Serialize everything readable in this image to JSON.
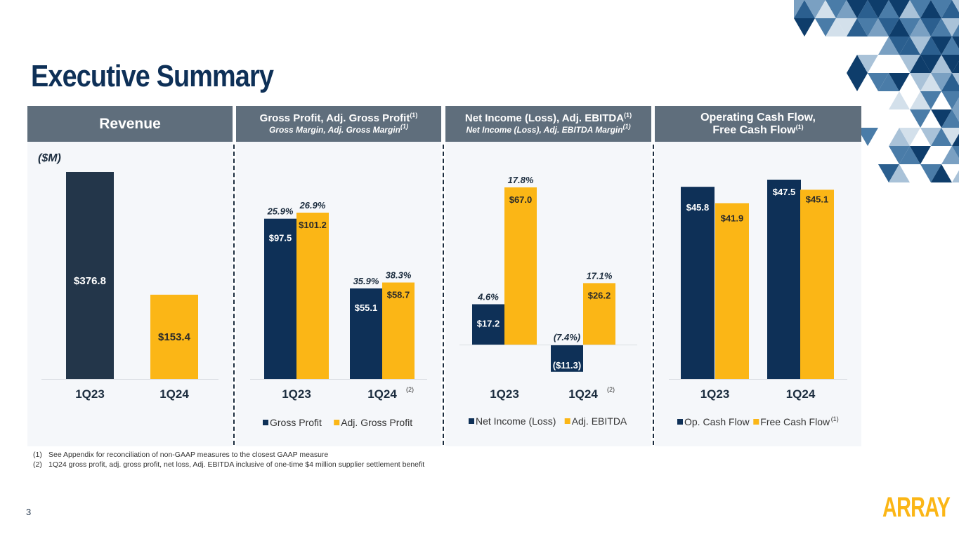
{
  "page": {
    "title": "Executive Summary",
    "page_number": "3",
    "logo_text": "ARRAY",
    "unit_label": "($M)",
    "colors": {
      "navy": "#0e3057",
      "dark": "#23364a",
      "gold": "#fbb616",
      "header": "#5f6e7c",
      "panel": "#f5f7fa"
    }
  },
  "panels": [
    {
      "title": "Revenue",
      "subtitle": "",
      "title_sup": ""
    },
    {
      "title": "Gross Profit, Adj. Gross Profit",
      "title_sup": "(1)",
      "subtitle": "Gross Margin, Adj. Gross Margin",
      "subtitle_sup": "(1)"
    },
    {
      "title": "Net Income (Loss), Adj. EBITDA",
      "title_sup": "(1)",
      "subtitle": "Net Income (Loss), Adj. EBITDA Margin",
      "subtitle_sup": "(1)"
    },
    {
      "title": "Operating Cash Flow,",
      "title_line2": "Free Cash Flow",
      "title_sup": "(1)",
      "subtitle": ""
    }
  ],
  "footnotes": [
    {
      "num": "(1)",
      "text": "See Appendix for reconciliation of non-GAAP measures to the closest GAAP measure"
    },
    {
      "num": "(2)",
      "text": "1Q24 gross profit, adj. gross profit, net loss, Adj. EBITDA inclusive of one-time $4 million supplier settlement benefit"
    }
  ],
  "chart_data": [
    {
      "type": "bar",
      "title": "Revenue",
      "ylabel": "($M)",
      "categories": [
        "1Q23",
        "1Q24"
      ],
      "category_notes": [
        "",
        ""
      ],
      "values": [
        376.8,
        153.4
      ],
      "value_labels": [
        "$376.8",
        "$153.4"
      ],
      "bar_colors": [
        "#23364a",
        "#fbb616"
      ],
      "ylim": [
        0,
        376.8
      ],
      "grid": false,
      "legend": null
    },
    {
      "type": "bar",
      "title": "Gross Profit, Adj. Gross Profit",
      "categories": [
        "1Q23",
        "1Q24"
      ],
      "category_notes": [
        "",
        "(2)"
      ],
      "series": [
        {
          "name": "Gross Profit",
          "color": "#0e3057",
          "values": [
            97.5,
            55.1
          ],
          "labels": [
            "$97.5",
            "$55.1"
          ],
          "margins": [
            "25.9%",
            "35.9%"
          ]
        },
        {
          "name": "Adj. Gross Profit",
          "color": "#fbb616",
          "values": [
            101.2,
            58.7
          ],
          "labels": [
            "$101.2",
            "$58.7"
          ],
          "margins": [
            "26.9%",
            "38.3%"
          ]
        }
      ],
      "ylim": [
        0,
        101.2
      ],
      "grid": false,
      "legend": "bottom"
    },
    {
      "type": "bar",
      "title": "Net Income (Loss), Adj. EBITDA",
      "categories": [
        "1Q23",
        "1Q24"
      ],
      "category_notes": [
        "",
        "(2)"
      ],
      "series": [
        {
          "name": "Net Income (Loss)",
          "color": "#0e3057",
          "values": [
            17.2,
            -11.3
          ],
          "labels": [
            "$17.2",
            "($11.3)"
          ],
          "margins": [
            "4.6%",
            "(7.4%)"
          ]
        },
        {
          "name": "Adj. EBITDA",
          "color": "#fbb616",
          "values": [
            67.0,
            26.2
          ],
          "labels": [
            "$67.0",
            "$26.2"
          ],
          "margins": [
            "17.8%",
            "17.1%"
          ]
        }
      ],
      "ylim": [
        -11.3,
        67.0
      ],
      "grid": false,
      "legend": "bottom"
    },
    {
      "type": "bar",
      "title": "Operating Cash Flow, Free Cash Flow",
      "categories": [
        "1Q23",
        "1Q24"
      ],
      "category_notes": [
        "",
        ""
      ],
      "series": [
        {
          "name": "Op. Cash Flow",
          "color": "#0e3057",
          "values": [
            45.8,
            47.5
          ],
          "labels": [
            "$45.8",
            "$47.5"
          ],
          "margins": [
            "",
            ""
          ]
        },
        {
          "name": "Free Cash Flow",
          "name_sup": "(1)",
          "color": "#fbb616",
          "values": [
            41.9,
            45.1
          ],
          "labels": [
            "$41.9",
            "$45.1"
          ],
          "margins": [
            "",
            ""
          ]
        }
      ],
      "ylim": [
        0,
        47.5
      ],
      "grid": false,
      "legend": "bottom"
    }
  ]
}
